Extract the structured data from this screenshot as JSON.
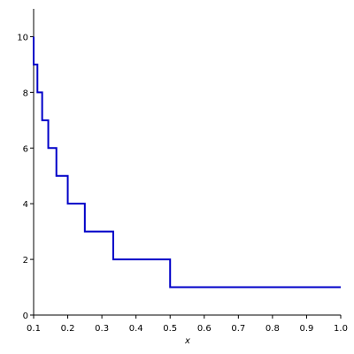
{
  "chart_data": {
    "type": "line",
    "x_label": "x",
    "x": [
      0.1,
      0.1,
      0.1111,
      0.1111,
      0.125,
      0.125,
      0.1429,
      0.1429,
      0.1667,
      0.1667,
      0.2,
      0.2,
      0.25,
      0.25,
      0.3333,
      0.3333,
      0.5,
      0.5,
      1.0
    ],
    "series": [
      {
        "color": "#0000c8",
        "values": [
          10,
          9,
          9,
          8,
          8,
          7,
          7,
          6,
          6,
          5,
          5,
          4,
          4,
          3,
          3,
          2,
          2,
          1,
          1
        ]
      }
    ],
    "xlim": [
      0.1,
      1.0
    ],
    "ylim": [
      0,
      11
    ],
    "xticks": [
      0.1,
      0.2,
      0.3,
      0.4,
      0.5,
      0.6,
      0.7,
      0.8,
      0.9,
      {
        "value": 1,
        "label": "1.0"
      }
    ],
    "yticks": [
      0,
      2,
      4,
      6,
      8,
      10
    ],
    "grid": false
  }
}
